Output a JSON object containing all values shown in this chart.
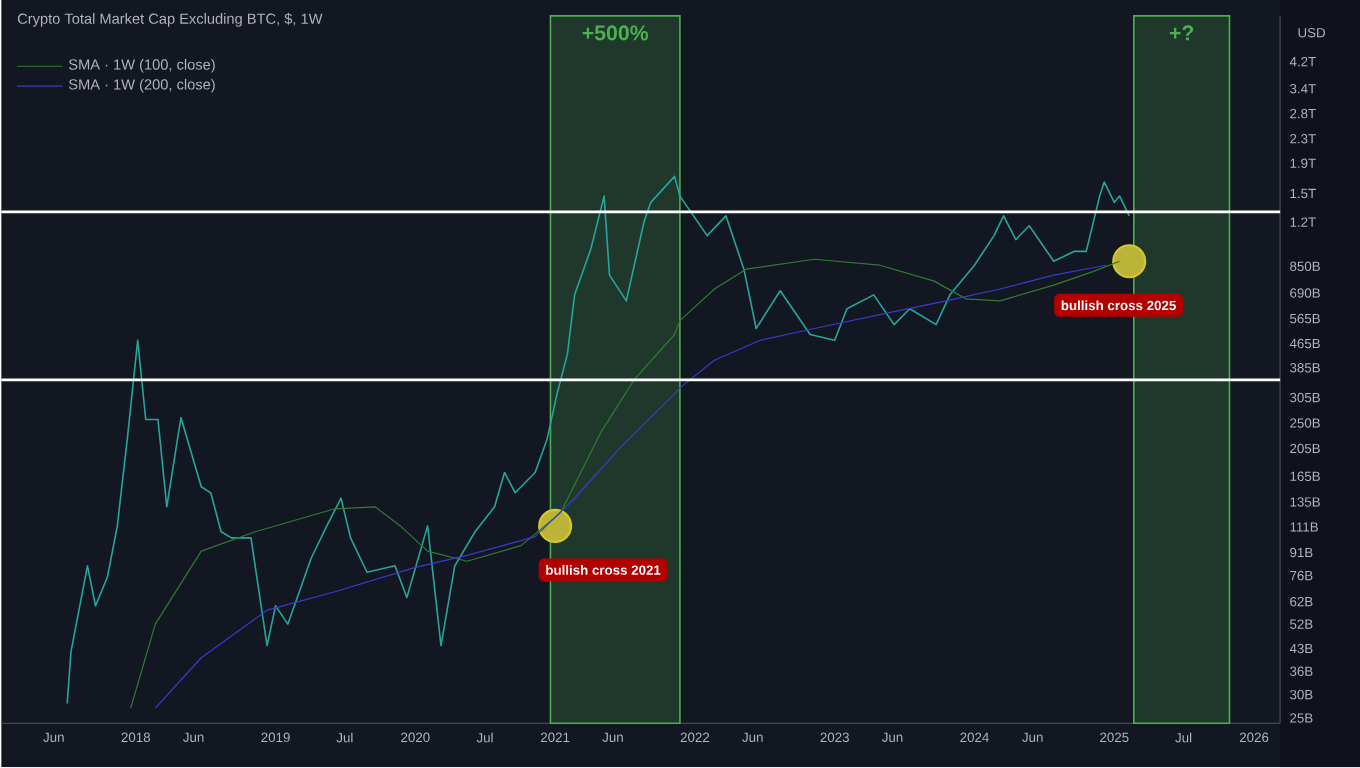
{
  "chart_data": {
    "type": "line",
    "title": "Crypto Total Market Cap Excluding BTC, $, 1W",
    "ylabel": "USD",
    "log": "y",
    "legend": "top left",
    "xlim": [
      "2017-01-15",
      "2026-03-10"
    ],
    "xticks": [
      {
        "value": "2017-06-01",
        "label": "Jun"
      },
      {
        "value": "2018-01-01",
        "label": "2018"
      },
      {
        "value": "2018-06-01",
        "label": "Jun"
      },
      {
        "value": "2019-01-01",
        "label": "2019"
      },
      {
        "value": "2019-07-01",
        "label": "Jul"
      },
      {
        "value": "2020-01-01",
        "label": "2020"
      },
      {
        "value": "2020-07-01",
        "label": "Jul"
      },
      {
        "value": "2021-01-01",
        "label": "2021"
      },
      {
        "value": "2021-06-01",
        "label": "Jun"
      },
      {
        "value": "2022-01-01",
        "label": "2022"
      },
      {
        "value": "2022-06-01",
        "label": "Jun"
      },
      {
        "value": "2023-01-01",
        "label": "2023"
      },
      {
        "value": "2023-06-01",
        "label": "Jun"
      },
      {
        "value": "2024-01-01",
        "label": "2024"
      },
      {
        "value": "2024-06-01",
        "label": "Jun"
      },
      {
        "value": "2025-01-01",
        "label": "2025"
      },
      {
        "value": "2025-07-01",
        "label": "Jul"
      },
      {
        "value": "2026-01-01",
        "label": "2026"
      }
    ],
    "ylim": [
      24000000000.0,
      6000000000000.0
    ],
    "yticks": [
      {
        "value": 4200000000000.0,
        "label": "4.2T"
      },
      {
        "value": 3400000000000.0,
        "label": "3.4T"
      },
      {
        "value": 2800000000000.0,
        "label": "2.8T"
      },
      {
        "value": 2300000000000.0,
        "label": "2.3T"
      },
      {
        "value": 1900000000000.0,
        "label": "1.9T"
      },
      {
        "value": 1500000000000.0,
        "label": "1.5T"
      },
      {
        "value": 1200000000000.0,
        "label": "1.2T"
      },
      {
        "value": 850000000000.0,
        "label": "850B"
      },
      {
        "value": 690000000000.0,
        "label": "690B"
      },
      {
        "value": 565000000000.0,
        "label": "565B"
      },
      {
        "value": 465000000000.0,
        "label": "465B"
      },
      {
        "value": 385000000000.0,
        "label": "385B"
      },
      {
        "value": 305000000000.0,
        "label": "305B"
      },
      {
        "value": 250000000000.0,
        "label": "250B"
      },
      {
        "value": 205000000000.0,
        "label": "205B"
      },
      {
        "value": 165000000000.0,
        "label": "165B"
      },
      {
        "value": 135000000000.0,
        "label": "135B"
      },
      {
        "value": 111000000000.0,
        "label": "111B"
      },
      {
        "value": 91000000000.0,
        "label": "91B"
      },
      {
        "value": 76000000000.0,
        "label": "76B"
      },
      {
        "value": 62000000000.0,
        "label": "62B"
      },
      {
        "value": 52000000000.0,
        "label": "52B"
      },
      {
        "value": 43000000000.0,
        "label": "43B"
      },
      {
        "value": 36000000000.0,
        "label": "36B"
      },
      {
        "value": 30000000000.0,
        "label": "30B"
      },
      {
        "value": 25000000000.0,
        "label": "25B"
      }
    ],
    "series": [
      {
        "color": "#26a69a",
        "x": [
          "2017-07-06",
          "2017-07-16",
          "2017-08-28",
          "2017-09-18",
          "2017-10-19",
          "2017-11-14",
          "2017-12-10",
          "2018-01-06",
          "2018-01-27",
          "2018-02-28",
          "2018-03-23",
          "2018-04-29",
          "2018-06-21",
          "2018-07-16",
          "2018-08-12",
          "2018-09-08",
          "2018-10-29",
          "2018-12-10",
          "2019-01-01",
          "2019-02-02",
          "2019-04-04",
          "2019-05-15",
          "2019-06-21",
          "2019-07-16",
          "2019-08-28",
          "2019-11-09",
          "2019-12-10",
          "2020-02-02",
          "2020-03-08",
          "2020-04-13",
          "2020-06-05",
          "2020-07-26",
          "2020-08-21",
          "2020-09-18",
          "2020-11-09",
          "2020-12-10",
          "2021-01-06",
          "2021-02-02",
          "2021-02-21",
          "2021-04-04",
          "2021-05-09",
          "2021-05-23",
          "2021-07-06",
          "2021-08-21",
          "2021-09-08",
          "2021-11-09",
          "2021-11-23",
          "2022-02-02",
          "2022-03-23",
          "2022-05-09",
          "2022-06-10",
          "2022-08-12",
          "2022-10-29",
          "2023-01-01",
          "2023-02-02",
          "2023-04-13",
          "2023-06-05",
          "2023-07-16",
          "2023-09-23",
          "2023-10-29",
          "2024-01-01",
          "2024-02-21",
          "2024-03-17",
          "2024-04-18",
          "2024-05-23",
          "2024-07-26",
          "2024-09-18",
          "2024-10-19",
          "2024-11-23",
          "2024-12-05",
          "2025-01-01",
          "2025-01-15",
          "2025-02-09"
        ],
        "values": [
          28000000000.0,
          42000000000.0,
          82000000000.0,
          60000000000.0,
          75000000000.0,
          112000000000.0,
          220000000000.0,
          477000000000.0,
          257000000000.0,
          257000000000.0,
          130000000000.0,
          261000000000.0,
          152000000000.0,
          145000000000.0,
          107000000000.0,
          102000000000.0,
          102000000000.0,
          44000000000.0,
          60000000000.0,
          52000000000.0,
          87000000000.0,
          112000000000.0,
          139000000000.0,
          102000000000.0,
          78000000000.0,
          82000000000.0,
          64000000000.0,
          112000000000.0,
          44000000000.0,
          82000000000.0,
          107000000000.0,
          130000000000.0,
          170000000000.0,
          145000000000.0,
          170000000000.0,
          220000000000.0,
          314000000000.0,
          428000000000.0,
          680000000000.0,
          970000000000.0,
          1470000000000.0,
          793000000000.0,
          649000000000.0,
          1200000000000.0,
          1400000000000.0,
          1715000000000.0,
          1470000000000.0,
          1080000000000.0,
          1260000000000.0,
          831000000000.0,
          523000000000.0,
          702000000000.0,
          499000000000.0,
          477000000000.0,
          610000000000.0,
          680000000000.0,
          539000000000.0,
          610000000000.0,
          539000000000.0,
          680000000000.0,
          857000000000.0,
          1080000000000.0,
          1260000000000.0,
          1047000000000.0,
          1166000000000.0,
          884000000000.0,
          955000000000.0,
          955000000000.0,
          1470000000000.0,
          1640000000000.0,
          1400000000000.0,
          1470000000000.0,
          1260000000000.0
        ]
      },
      {
        "name": "SMA · 1W (100, close)",
        "color": "#2e7d32",
        "x": [
          "2017-12-19",
          "2018-02-21",
          "2018-06-21",
          "2018-11-09",
          "2019-06-05",
          "2019-09-18",
          "2019-11-23",
          "2020-02-02",
          "2020-05-15",
          "2020-10-03",
          "2021-01-15",
          "2021-04-29",
          "2021-07-26",
          "2021-11-09",
          "2021-11-23",
          "2022-02-21",
          "2022-05-15",
          "2022-11-09",
          "2023-04-29",
          "2023-09-18",
          "2023-12-10",
          "2024-03-08",
          "2024-07-26",
          "2024-11-09",
          "2025-01-15"
        ],
        "values": [
          27000000000.0,
          52000000000.0,
          92000000000.0,
          107000000000.0,
          128000000000.0,
          130000000000.0,
          112000000000.0,
          92000000000.0,
          85000000000.0,
          96000000000.0,
          124000000000.0,
          231000000000.0,
          350000000000.0,
          499000000000.0,
          556000000000.0,
          712000000000.0,
          831000000000.0,
          898000000000.0,
          857000000000.0,
          757000000000.0,
          659000000000.0,
          649000000000.0,
          734000000000.0,
          818000000000.0,
          884000000000.0
        ]
      },
      {
        "name": "SMA · 1W (200, close)",
        "color": "#3a3ad0",
        "x": [
          "2018-02-21",
          "2018-06-21",
          "2018-12-10",
          "2019-06-05",
          "2020-01-01",
          "2020-05-15",
          "2020-11-09",
          "2021-02-21",
          "2021-06-21",
          "2021-11-09",
          "2021-11-23",
          "2022-02-21",
          "2022-06-21",
          "2022-11-09",
          "2023-04-29",
          "2023-10-19",
          "2024-03-08",
          "2024-07-26",
          "2024-12-10"
        ],
        "values": [
          27000000000.0,
          40000000000.0,
          58000000000.0,
          67000000000.0,
          81000000000.0,
          89000000000.0,
          103000000000.0,
          139000000000.0,
          207000000000.0,
          314000000000.0,
          329000000000.0,
          408000000000.0,
          477000000000.0,
          523000000000.0,
          583000000000.0,
          649000000000.0,
          712000000000.0,
          793000000000.0,
          857000000000.0
        ]
      }
    ],
    "ref_lines": [
      {
        "axis": "y",
        "value": 350000000000.0,
        "color": "#ffffff"
      },
      {
        "axis": "y",
        "value": 1300000000000.0,
        "color": "#ffffff"
      }
    ],
    "bands": [
      {
        "axis": "x",
        "from": "2020-12-19",
        "to": "2021-11-23",
        "label": "+500%",
        "color": "#4caf50"
      },
      {
        "axis": "x",
        "from": "2025-02-21",
        "to": "2025-10-29",
        "label": "+?",
        "color": "#4caf50"
      }
    ],
    "annotations": [
      {
        "text": "bullish cross 2021",
        "x": "2021-01-01",
        "y": 112000000000.0
      },
      {
        "text": "bullish cross 2025",
        "x": "2025-02-09",
        "y": 884000000000.0
      }
    ]
  }
}
